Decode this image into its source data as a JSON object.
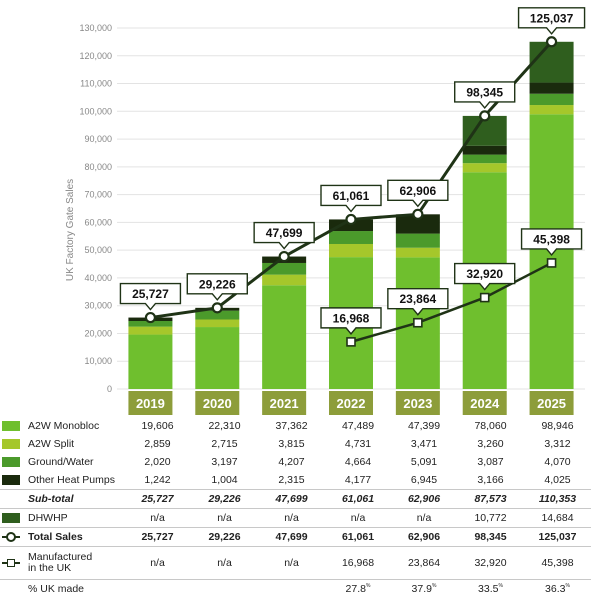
{
  "chart_data": {
    "type": "bar",
    "stacked": true,
    "ylabel": "UK Factory Gate Sales",
    "ylim": [
      0,
      130000
    ],
    "ytick_step": 10000,
    "ytick_labels": [
      "0",
      "10,000",
      "20,000",
      "30,000",
      "40,000",
      "50,000",
      "60,000",
      "70,000",
      "80,000",
      "90,000",
      "100,000",
      "110,000",
      "120,000",
      "130,000"
    ],
    "categories": [
      "2019",
      "2020",
      "2021",
      "2022",
      "2023",
      "2024",
      "2025"
    ],
    "series": [
      {
        "name": "A2W Monobloc",
        "color": "#6fbf2e",
        "values": [
          19606,
          22310,
          37362,
          47489,
          47399,
          78060,
          98946
        ]
      },
      {
        "name": "A2W Split",
        "color": "#a5c72b",
        "values": [
          2859,
          2715,
          3815,
          4731,
          3471,
          3260,
          3312
        ]
      },
      {
        "name": "Ground/Water",
        "color": "#4b9a2b",
        "values": [
          2020,
          3197,
          4207,
          4664,
          5091,
          3087,
          4070
        ]
      },
      {
        "name": "Other Heat Pumps",
        "color": "#1a2a0d",
        "values": [
          1242,
          1004,
          2315,
          4177,
          6945,
          3166,
          4025
        ]
      },
      {
        "name": "DHWHP",
        "color": "#2f5e1e",
        "values": [
          null,
          null,
          null,
          null,
          null,
          10772,
          14684
        ]
      }
    ],
    "lines": [
      {
        "name": "Total Sales",
        "marker": "circle",
        "values": [
          25727,
          29226,
          47699,
          61061,
          62906,
          98345,
          125037
        ]
      },
      {
        "name": "Manufactured in the UK",
        "marker": "square",
        "values": [
          null,
          null,
          null,
          16968,
          23864,
          32920,
          45398
        ]
      }
    ],
    "callouts_total": [
      "25,727",
      "29,226",
      "47,699",
      "61,061",
      "62,906",
      "98,345",
      "125,037"
    ],
    "callouts_uk": [
      null,
      null,
      null,
      "16,968",
      "23,864",
      "32,920",
      "45,398"
    ],
    "colors": {
      "year_bar": "#8d9d3a",
      "line": "#1f3316"
    }
  },
  "table": {
    "rows": [
      {
        "id": "a2w-monobloc",
        "label": "A2W Monobloc",
        "icon": "swatch",
        "color": "#6fbf2e",
        "style": "normal",
        "values": [
          "19,606",
          "22,310",
          "37,362",
          "47,489",
          "47,399",
          "78,060",
          "98,946"
        ]
      },
      {
        "id": "a2w-split",
        "label": "A2W Split",
        "icon": "swatch",
        "color": "#a5c72b",
        "style": "normal",
        "values": [
          "2,859",
          "2,715",
          "3,815",
          "4,731",
          "3,471",
          "3,260",
          "3,312"
        ]
      },
      {
        "id": "ground-water",
        "label": "Ground/Water",
        "icon": "swatch",
        "color": "#4b9a2b",
        "style": "normal",
        "values": [
          "2,020",
          "3,197",
          "4,207",
          "4,664",
          "5,091",
          "3,087",
          "4,070"
        ]
      },
      {
        "id": "other-heat-pumps",
        "label": "Other Heat Pumps",
        "icon": "swatch",
        "color": "#1a2a0d",
        "style": "normal",
        "values": [
          "1,242",
          "1,004",
          "2,315",
          "4,177",
          "6,945",
          "3,166",
          "4,025"
        ]
      },
      {
        "id": "sub-total",
        "label": "Sub-total",
        "icon": "none",
        "style": "italic-bold",
        "divider": true,
        "values": [
          "25,727",
          "29,226",
          "47,699",
          "61,061",
          "62,906",
          "87,573",
          "110,353"
        ]
      },
      {
        "id": "dhwhp",
        "label": "DHWHP",
        "icon": "swatch",
        "color": "#2f5e1e",
        "style": "normal",
        "divider": true,
        "values": [
          "n/a",
          "n/a",
          "n/a",
          "n/a",
          "n/a",
          "10,772",
          "14,684"
        ]
      },
      {
        "id": "total-sales",
        "label": "Total Sales",
        "icon": "line-circle",
        "style": "bold",
        "divider": true,
        "values": [
          "25,727",
          "29,226",
          "47,699",
          "61,061",
          "62,906",
          "98,345",
          "125,037"
        ]
      },
      {
        "id": "manufactured-uk",
        "label": "Manufactured in the UK",
        "label_lines": [
          "Manufactured",
          "in the UK"
        ],
        "icon": "line-square",
        "style": "normal",
        "divider": true,
        "tall": true,
        "values": [
          "n/a",
          "n/a",
          "n/a",
          "16,968",
          "23,864",
          "32,920",
          "45,398"
        ]
      },
      {
        "id": "pct-uk-made",
        "label": "% UK made",
        "icon": "none",
        "style": "pct",
        "divider": true,
        "values": [
          "",
          "",
          "",
          "27.8",
          "37.9",
          "33.5",
          "36.3"
        ],
        "suffix": "%"
      }
    ]
  }
}
